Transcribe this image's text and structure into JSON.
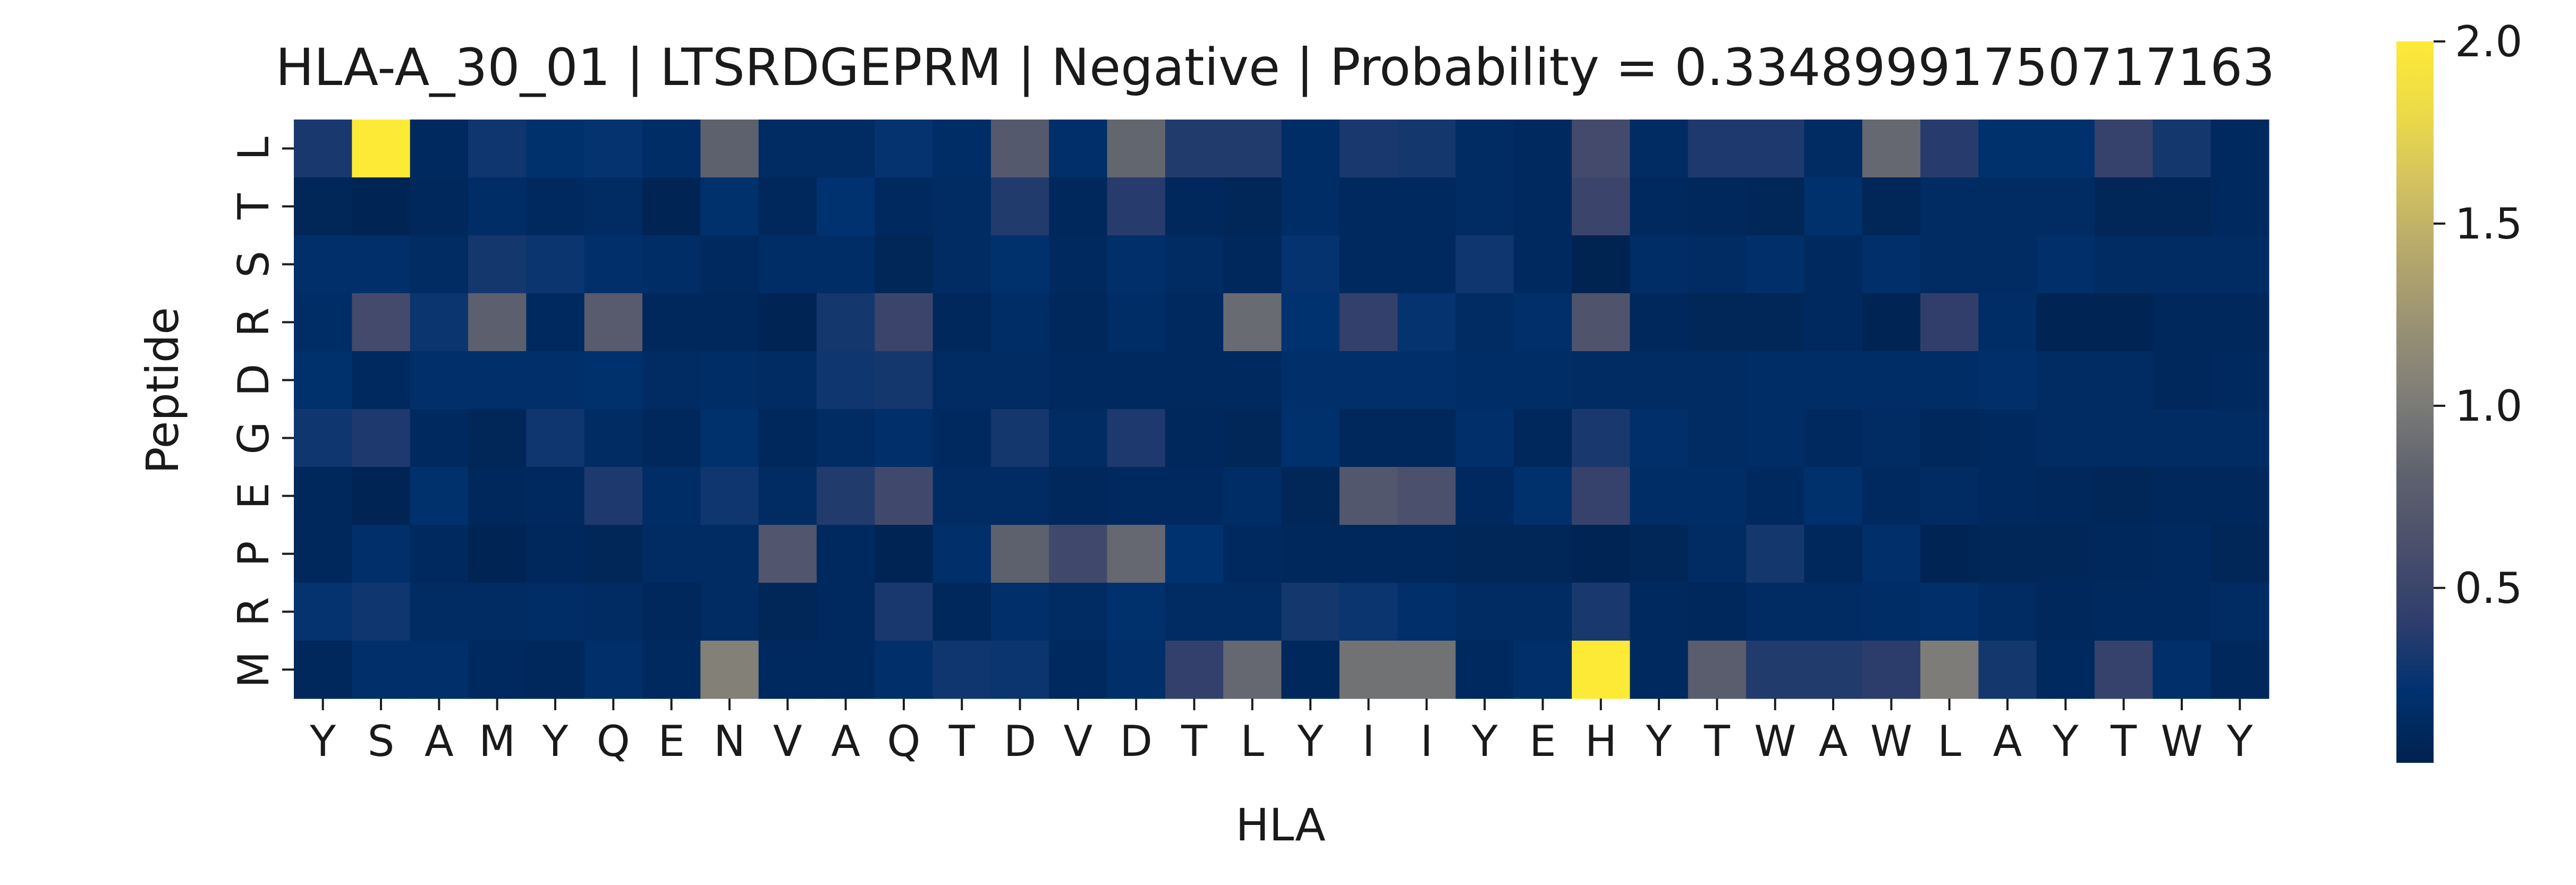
{
  "chart_data": {
    "type": "heatmap",
    "title": "HLA-A_30_01 | LTSRDGEPRM | Negative | Probability = 0.33489991750717163",
    "xlabel": "HLA",
    "ylabel": "Peptide",
    "x": [
      "Y",
      "S",
      "A",
      "M",
      "Y",
      "Q",
      "E",
      "N",
      "V",
      "A",
      "Q",
      "T",
      "D",
      "V",
      "D",
      "T",
      "L",
      "Y",
      "I",
      "I",
      "Y",
      "E",
      "H",
      "Y",
      "T",
      "W",
      "A",
      "W",
      "L",
      "A",
      "Y",
      "T",
      "W",
      "Y"
    ],
    "y": [
      "L",
      "T",
      "S",
      "R",
      "D",
      "G",
      "E",
      "P",
      "R",
      "M"
    ],
    "colorbar": {
      "min": 0.02,
      "max": 2.0,
      "ticks": [
        "0.5",
        "1.0",
        "1.5",
        "2.0"
      ],
      "tick_values": [
        0.5,
        1.0,
        1.5,
        2.0
      ],
      "colormap": "cividis"
    },
    "values": [
      [
        0.32,
        2.0,
        0.12,
        0.28,
        0.2,
        0.24,
        0.16,
        0.8,
        0.14,
        0.14,
        0.24,
        0.16,
        0.72,
        0.18,
        0.84,
        0.36,
        0.36,
        0.16,
        0.32,
        0.3,
        0.14,
        0.12,
        0.56,
        0.14,
        0.34,
        0.34,
        0.14,
        0.86,
        0.38,
        0.2,
        0.2,
        0.46,
        0.3,
        0.12
      ],
      [
        0.08,
        0.06,
        0.1,
        0.16,
        0.12,
        0.14,
        0.06,
        0.2,
        0.1,
        0.22,
        0.12,
        0.14,
        0.36,
        0.1,
        0.38,
        0.1,
        0.08,
        0.16,
        0.12,
        0.12,
        0.14,
        0.12,
        0.5,
        0.12,
        0.1,
        0.08,
        0.2,
        0.08,
        0.14,
        0.14,
        0.14,
        0.08,
        0.08,
        0.12
      ],
      [
        0.18,
        0.18,
        0.14,
        0.3,
        0.26,
        0.18,
        0.16,
        0.12,
        0.16,
        0.16,
        0.08,
        0.14,
        0.2,
        0.12,
        0.18,
        0.14,
        0.1,
        0.24,
        0.12,
        0.12,
        0.28,
        0.12,
        0.04,
        0.16,
        0.14,
        0.18,
        0.12,
        0.18,
        0.14,
        0.14,
        0.18,
        0.14,
        0.14,
        0.14
      ],
      [
        0.16,
        0.56,
        0.26,
        0.78,
        0.12,
        0.74,
        0.1,
        0.1,
        0.06,
        0.3,
        0.5,
        0.1,
        0.16,
        0.1,
        0.16,
        0.12,
        0.88,
        0.22,
        0.44,
        0.24,
        0.14,
        0.18,
        0.66,
        0.1,
        0.08,
        0.08,
        0.12,
        0.06,
        0.42,
        0.16,
        0.06,
        0.06,
        0.1,
        0.1
      ],
      [
        0.2,
        0.12,
        0.18,
        0.18,
        0.18,
        0.2,
        0.14,
        0.16,
        0.14,
        0.28,
        0.3,
        0.14,
        0.14,
        0.12,
        0.12,
        0.12,
        0.12,
        0.18,
        0.18,
        0.18,
        0.16,
        0.16,
        0.14,
        0.14,
        0.14,
        0.16,
        0.16,
        0.16,
        0.16,
        0.18,
        0.14,
        0.14,
        0.1,
        0.12
      ],
      [
        0.28,
        0.34,
        0.12,
        0.08,
        0.28,
        0.14,
        0.1,
        0.2,
        0.1,
        0.14,
        0.18,
        0.12,
        0.3,
        0.14,
        0.34,
        0.1,
        0.08,
        0.2,
        0.1,
        0.1,
        0.18,
        0.1,
        0.32,
        0.18,
        0.14,
        0.16,
        0.12,
        0.14,
        0.1,
        0.12,
        0.14,
        0.14,
        0.14,
        0.14
      ],
      [
        0.1,
        0.06,
        0.2,
        0.1,
        0.12,
        0.34,
        0.16,
        0.28,
        0.14,
        0.36,
        0.54,
        0.14,
        0.14,
        0.1,
        0.12,
        0.12,
        0.16,
        0.08,
        0.7,
        0.62,
        0.12,
        0.2,
        0.46,
        0.16,
        0.16,
        0.12,
        0.2,
        0.12,
        0.14,
        0.12,
        0.1,
        0.08,
        0.1,
        0.1
      ],
      [
        0.1,
        0.18,
        0.12,
        0.06,
        0.1,
        0.08,
        0.14,
        0.14,
        0.68,
        0.12,
        0.06,
        0.18,
        0.8,
        0.54,
        0.86,
        0.22,
        0.12,
        0.1,
        0.1,
        0.1,
        0.08,
        0.08,
        0.06,
        0.08,
        0.14,
        0.3,
        0.1,
        0.18,
        0.06,
        0.08,
        0.08,
        0.1,
        0.12,
        0.08
      ],
      [
        0.24,
        0.28,
        0.14,
        0.14,
        0.16,
        0.14,
        0.1,
        0.14,
        0.08,
        0.12,
        0.32,
        0.1,
        0.18,
        0.14,
        0.2,
        0.14,
        0.14,
        0.3,
        0.26,
        0.18,
        0.14,
        0.14,
        0.32,
        0.12,
        0.1,
        0.14,
        0.14,
        0.16,
        0.18,
        0.14,
        0.1,
        0.12,
        0.12,
        0.14
      ],
      [
        0.1,
        0.18,
        0.18,
        0.12,
        0.1,
        0.18,
        0.12,
        1.06,
        0.12,
        0.12,
        0.18,
        0.28,
        0.26,
        0.12,
        0.18,
        0.44,
        0.86,
        0.1,
        0.94,
        0.94,
        0.12,
        0.18,
        2.0,
        0.12,
        0.76,
        0.36,
        0.36,
        0.4,
        1.02,
        0.3,
        0.12,
        0.46,
        0.18,
        0.1
      ]
    ]
  }
}
